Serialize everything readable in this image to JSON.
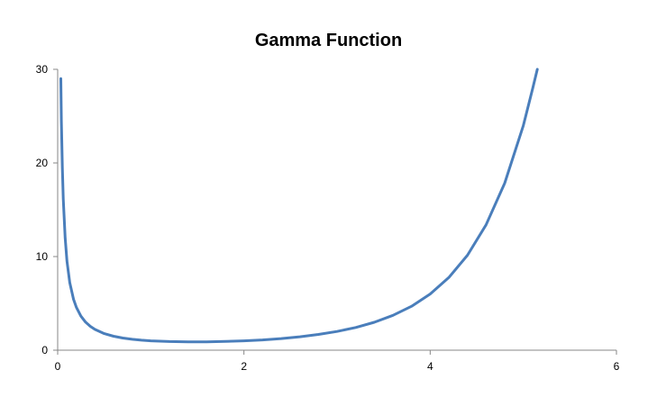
{
  "chart_data": {
    "type": "line",
    "title": "Gamma Function",
    "xlabel": "",
    "ylabel": "",
    "xlim": [
      0,
      6
    ],
    "ylim": [
      0,
      30
    ],
    "x_ticks": [
      0,
      2,
      4,
      6
    ],
    "y_ticks": [
      0,
      10,
      20,
      30
    ],
    "x_tick_labels": [
      "0",
      "2",
      "4",
      "6"
    ],
    "y_tick_labels": [
      "0",
      "10",
      "20",
      "30"
    ],
    "grid": false,
    "legend": "none",
    "series": [
      {
        "color": "#4A7EBB",
        "x": [
          0.034,
          0.04,
          0.05,
          0.06,
          0.08,
          0.1,
          0.13,
          0.17,
          0.2,
          0.25,
          0.3,
          0.35,
          0.4,
          0.5,
          0.6,
          0.7,
          0.8,
          0.9,
          1.0,
          1.2,
          1.4,
          1.46,
          1.6,
          1.8,
          2.0,
          2.2,
          2.4,
          2.6,
          2.8,
          3.0,
          3.2,
          3.4,
          3.6,
          3.8,
          4.0,
          4.2,
          4.4,
          4.6,
          4.8,
          5.0,
          5.1,
          5.15
        ],
        "values": [
          29.0,
          24.46,
          19.47,
          16.15,
          11.99,
          9.51,
          7.22,
          5.43,
          4.59,
          3.63,
          2.99,
          2.55,
          2.22,
          1.77,
          1.49,
          1.3,
          1.16,
          1.07,
          1.0,
          0.92,
          0.89,
          0.886,
          0.89,
          0.93,
          1.0,
          1.1,
          1.24,
          1.43,
          1.68,
          2.0,
          2.42,
          2.98,
          3.72,
          4.69,
          6.0,
          7.76,
          10.14,
          13.38,
          17.84,
          24.0,
          27.93,
          30.0
        ]
      }
    ]
  }
}
